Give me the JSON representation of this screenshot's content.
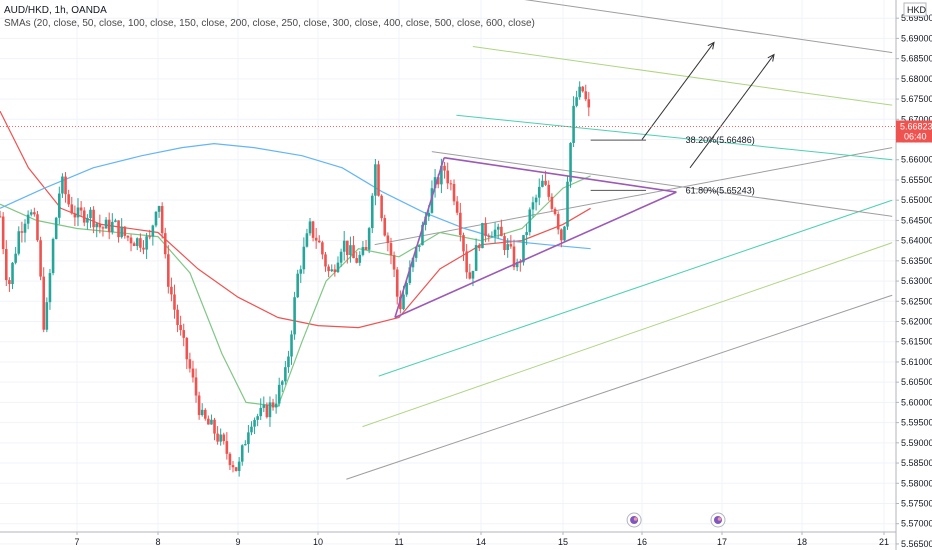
{
  "chart_data": {
    "type": "line",
    "symbol_title": "AUD/HKD, 1h, OANDA",
    "indicator_label": "SMAs (20, close, 50, close, 100, close, 150, close, 200, close, 250, close, 300, close, 400, close, 500, close, 600, close)",
    "currency": "HKD",
    "current_price": "5.66823",
    "countdown": "06:40",
    "ylim": [
      5.5635,
      5.6995
    ],
    "y_ticks": [
      "5.69500",
      "5.69000",
      "5.68500",
      "5.68000",
      "5.67500",
      "5.67000",
      "5.66500",
      "5.66000",
      "5.65500",
      "5.65000",
      "5.64500",
      "5.64000",
      "5.63500",
      "5.63000",
      "5.62500",
      "5.62000",
      "5.61500",
      "5.61000",
      "5.60500",
      "5.60000",
      "5.59500",
      "5.59000",
      "5.58500",
      "5.58000",
      "5.57500",
      "5.57000",
      "5.56500"
    ],
    "x_ticks": [
      {
        "label": "7",
        "t": 0
      },
      {
        "label": "8",
        "t": 1
      },
      {
        "label": "9",
        "t": 2
      },
      {
        "label": "10",
        "t": 3
      },
      {
        "label": "11",
        "t": 4
      },
      {
        "label": "14",
        "t": 5
      },
      {
        "label": "15",
        "t": 6
      },
      {
        "label": "16",
        "t": 7
      },
      {
        "label": "17",
        "t": 8
      },
      {
        "label": "18",
        "t": 9
      },
      {
        "label": "21",
        "t": 10
      }
    ],
    "price_path": [
      [
        -0.95,
        5.646
      ],
      [
        -0.85,
        5.628
      ],
      [
        -0.72,
        5.642
      ],
      [
        -0.6,
        5.648
      ],
      [
        -0.5,
        5.643
      ],
      [
        -0.4,
        5.617
      ],
      [
        -0.3,
        5.639
      ],
      [
        -0.2,
        5.655
      ],
      [
        -0.1,
        5.649
      ],
      [
        0.0,
        5.646
      ],
      [
        0.15,
        5.647
      ],
      [
        0.3,
        5.643
      ],
      [
        0.45,
        5.644
      ],
      [
        0.6,
        5.641
      ],
      [
        0.75,
        5.64
      ],
      [
        0.9,
        5.64
      ],
      [
        1.0,
        5.652
      ],
      [
        1.1,
        5.633
      ],
      [
        1.25,
        5.619
      ],
      [
        1.4,
        5.608
      ],
      [
        1.55,
        5.596
      ],
      [
        1.7,
        5.593
      ],
      [
        1.85,
        5.588
      ],
      [
        2.0,
        5.583
      ],
      [
        2.15,
        5.596
      ],
      [
        2.3,
        5.597
      ],
      [
        2.45,
        5.6
      ],
      [
        2.6,
        5.607
      ],
      [
        2.75,
        5.632
      ],
      [
        2.9,
        5.643
      ],
      [
        3.0,
        5.64
      ],
      [
        3.15,
        5.631
      ],
      [
        3.3,
        5.64
      ],
      [
        3.45,
        5.635
      ],
      [
        3.6,
        5.637
      ],
      [
        3.7,
        5.66
      ],
      [
        3.8,
        5.645
      ],
      [
        3.92,
        5.635
      ],
      [
        4.0,
        5.623
      ],
      [
        4.1,
        5.63
      ],
      [
        4.25,
        5.64
      ],
      [
        4.4,
        5.652
      ],
      [
        4.55,
        5.658
      ],
      [
        4.7,
        5.65
      ],
      [
        4.85,
        5.63
      ],
      [
        5.0,
        5.642
      ],
      [
        5.15,
        5.643
      ],
      [
        5.3,
        5.639
      ],
      [
        5.45,
        5.633
      ],
      [
        5.6,
        5.647
      ],
      [
        5.75,
        5.654
      ],
      [
        5.9,
        5.648
      ],
      [
        6.0,
        5.639
      ],
      [
        6.05,
        5.655
      ],
      [
        6.15,
        5.675
      ],
      [
        6.25,
        5.677
      ],
      [
        6.35,
        5.67
      ]
    ],
    "sma_series": [
      {
        "color": "#ef5350",
        "points": [
          [
            -0.95,
            5.672
          ],
          [
            -0.6,
            5.658
          ],
          [
            -0.2,
            5.648
          ],
          [
            0.3,
            5.644
          ],
          [
            1.0,
            5.642
          ],
          [
            1.5,
            5.633
          ],
          [
            2.0,
            5.626
          ],
          [
            2.5,
            5.621
          ],
          [
            3.0,
            5.619
          ],
          [
            3.5,
            5.6185
          ],
          [
            4.0,
            5.621
          ],
          [
            4.5,
            5.633
          ],
          [
            5.0,
            5.639
          ],
          [
            5.5,
            5.64
          ],
          [
            6.0,
            5.644
          ],
          [
            6.35,
            5.648
          ]
        ]
      },
      {
        "color": "#81c784",
        "points": [
          [
            -0.95,
            5.649
          ],
          [
            -0.5,
            5.645
          ],
          [
            0.0,
            5.643
          ],
          [
            0.5,
            5.642
          ],
          [
            1.0,
            5.641
          ],
          [
            1.4,
            5.632
          ],
          [
            1.8,
            5.612
          ],
          [
            2.1,
            5.6
          ],
          [
            2.5,
            5.599
          ],
          [
            2.8,
            5.615
          ],
          [
            3.1,
            5.63
          ],
          [
            3.5,
            5.638
          ],
          [
            4.0,
            5.636
          ],
          [
            4.5,
            5.642
          ],
          [
            5.0,
            5.64
          ],
          [
            5.5,
            5.643
          ],
          [
            6.0,
            5.653
          ],
          [
            6.35,
            5.656
          ]
        ]
      },
      {
        "color": "#64b5f6",
        "points": [
          [
            -0.95,
            5.648
          ],
          [
            -0.4,
            5.653
          ],
          [
            0.2,
            5.658
          ],
          [
            0.8,
            5.661
          ],
          [
            1.3,
            5.663
          ],
          [
            1.7,
            5.664
          ],
          [
            2.2,
            5.663
          ],
          [
            2.8,
            5.661
          ],
          [
            3.3,
            5.658
          ],
          [
            3.8,
            5.652
          ],
          [
            4.3,
            5.647
          ],
          [
            4.8,
            5.643
          ],
          [
            5.3,
            5.64
          ],
          [
            5.8,
            5.639
          ],
          [
            6.35,
            5.638
          ]
        ]
      }
    ],
    "triangle": {
      "color": "#9c59b6",
      "upper": [
        [
          4.55,
          5.6605
        ],
        [
          7.43,
          5.652
        ]
      ],
      "lower": [
        [
          3.95,
          5.621
        ],
        [
          7.43,
          5.652
        ]
      ],
      "left": [
        [
          3.95,
          5.621
        ],
        [
          4.55,
          5.6605
        ]
      ]
    },
    "channels": [
      {
        "color": "#9e9e9e",
        "points": [
          [
            3.35,
            5.581
          ],
          [
            10.1,
            5.6265
          ]
        ]
      },
      {
        "color": "#4dd0b1",
        "points": [
          [
            3.75,
            5.6065
          ],
          [
            10.1,
            5.65
          ]
        ]
      },
      {
        "color": "#aed581",
        "points": [
          [
            3.55,
            5.594
          ],
          [
            10.1,
            5.6395
          ]
        ]
      },
      {
        "color": "#9e9e9e",
        "points": [
          [
            3.7,
            5.639
          ],
          [
            10.1,
            5.663
          ]
        ]
      },
      {
        "color": "#9e9e9e",
        "points": [
          [
            5.4,
            5.7
          ],
          [
            10.1,
            5.6865
          ]
        ]
      },
      {
        "color": "#aed581",
        "points": [
          [
            4.9,
            5.688
          ],
          [
            10.1,
            5.6735
          ]
        ]
      },
      {
        "color": "#4dd0b1",
        "points": [
          [
            4.7,
            5.671
          ],
          [
            10.1,
            5.66
          ]
        ]
      },
      {
        "color": "#9e9e9e",
        "points": [
          [
            4.4,
            5.662
          ],
          [
            10.1,
            5.646
          ]
        ]
      }
    ],
    "fib_levels": [
      {
        "label": "38.20%(5.66486)",
        "value": 5.66486,
        "x_from": 6.35,
        "x_to": 7.05
      },
      {
        "label": "61.80%(5.65243)",
        "value": 5.65243,
        "x_from": 6.35,
        "x_to": 7.05
      }
    ],
    "arrows": [
      {
        "from": [
          7.0,
          5.665
        ],
        "to": [
          7.9,
          5.689
        ]
      },
      {
        "from": [
          7.6,
          5.658
        ],
        "to": [
          8.65,
          5.686
        ]
      }
    ]
  }
}
